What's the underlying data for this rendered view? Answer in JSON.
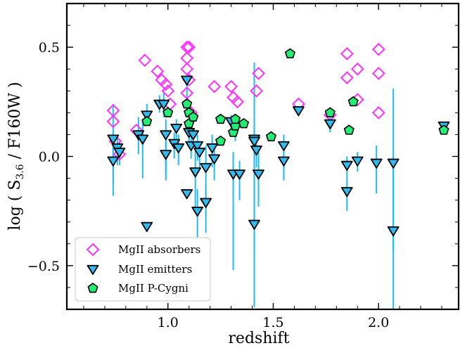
{
  "chart_data": {
    "type": "scatter",
    "title": "",
    "xlabel": "redshift",
    "ylabel_main": "log ( S",
    "ylabel_sub": "3.6",
    "ylabel_tail": " / F160W )",
    "xlim": [
      0.52,
      2.38
    ],
    "ylim": [
      -0.7,
      0.7
    ],
    "x_ticks": [
      1.0,
      1.5,
      2.0
    ],
    "x_tick_labels": [
      "1.0",
      "1.5",
      "2.0"
    ],
    "y_ticks": [
      -0.5,
      0.0,
      0.5
    ],
    "y_tick_labels": [
      "−0.5",
      "0.0",
      "0.5"
    ],
    "legend_position": "lower-left",
    "colors": {
      "absorber": "#ff33ff",
      "emitter_fill": "#33bbee",
      "pcygni_fill": "#22ee77",
      "errorbar": "#22bbee"
    },
    "series": [
      {
        "name": "MgII absorbers",
        "marker": "diamond",
        "points": [
          [
            0.74,
            0.21
          ],
          [
            0.74,
            0.16
          ],
          [
            0.75,
            0.07
          ],
          [
            0.77,
            0.01
          ],
          [
            0.85,
            0.12
          ],
          [
            0.89,
            0.44
          ],
          [
            0.95,
            0.39
          ],
          [
            0.97,
            0.35
          ],
          [
            0.99,
            0.33
          ],
          [
            1.0,
            0.3
          ],
          [
            1.01,
            0.24
          ],
          [
            1.09,
            0.5
          ],
          [
            1.09,
            0.45
          ],
          [
            1.09,
            0.4
          ],
          [
            1.1,
            0.5
          ],
          [
            1.1,
            0.35
          ],
          [
            1.09,
            0.29
          ],
          [
            1.11,
            0.2
          ],
          [
            1.22,
            0.32
          ],
          [
            1.3,
            0.32
          ],
          [
            1.31,
            0.27
          ],
          [
            1.33,
            0.25
          ],
          [
            1.42,
            0.3
          ],
          [
            1.43,
            0.38
          ],
          [
            1.62,
            0.24
          ],
          [
            1.77,
            0.19
          ],
          [
            1.85,
            0.47
          ],
          [
            1.85,
            0.36
          ],
          [
            1.9,
            0.4
          ],
          [
            1.9,
            0.26
          ],
          [
            2.0,
            0.49
          ],
          [
            2.0,
            0.38
          ],
          [
            2.0,
            0.2
          ]
        ]
      },
      {
        "name": "MgII emitters",
        "marker": "triangle-down",
        "points": [
          [
            0.74,
            0.08,
            0.16,
            0.26
          ],
          [
            0.74,
            -0.02,
            0.08,
            0.1
          ],
          [
            0.76,
            0.04,
            0.06,
            0.08
          ],
          [
            0.77,
            0.02,
            0.05,
            0.06
          ],
          [
            0.86,
            0.1,
            0.08,
            0.09
          ],
          [
            0.88,
            0.08,
            0.08,
            0.18
          ],
          [
            0.9,
            -0.32,
            0.0,
            0.0
          ],
          [
            0.9,
            0.19,
            0.05,
            0.04
          ],
          [
            0.96,
            0.24,
            0.04,
            0.04
          ],
          [
            0.98,
            0.24,
            0.06,
            0.06
          ],
          [
            0.99,
            0.1,
            0.07,
            0.18
          ],
          [
            0.99,
            0.01,
            0.08,
            0.12
          ],
          [
            1.03,
            0.06,
            0.05,
            0.07
          ],
          [
            1.04,
            0.13,
            0.04,
            0.06
          ],
          [
            1.05,
            0.04,
            0.06,
            0.08
          ],
          [
            1.09,
            0.35,
            0.02,
            0.1
          ],
          [
            1.09,
            -0.17,
            0.0,
            0.0
          ],
          [
            1.1,
            0.11,
            0.04,
            0.06
          ],
          [
            1.11,
            0.05,
            0.05,
            0.06
          ],
          [
            1.12,
            0.1,
            0.03,
            0.05
          ],
          [
            1.13,
            -0.07,
            0.1,
            0.16
          ],
          [
            1.14,
            -0.25,
            0.1,
            0.17
          ],
          [
            1.14,
            0.05,
            0.05,
            0.07
          ],
          [
            1.15,
            0.02,
            0.05,
            0.08
          ],
          [
            1.18,
            -0.05,
            0.1,
            0.14
          ],
          [
            1.18,
            -0.21,
            0.08,
            0.14
          ],
          [
            1.21,
            0.04,
            0.06,
            0.09
          ],
          [
            1.22,
            -0.01,
            0.06,
            0.1
          ],
          [
            1.3,
            0.16,
            0.03,
            0.06
          ],
          [
            1.31,
            -0.08,
            0.1,
            0.44
          ],
          [
            1.32,
            0.13,
            0.04,
            0.06
          ],
          [
            1.34,
            -0.08,
            0.06,
            0.12
          ],
          [
            1.41,
            0.08,
            0.06,
            0.08
          ],
          [
            1.41,
            -0.31,
            0.36,
            0.38
          ],
          [
            1.41,
            0.07,
            0.36,
            0.5
          ],
          [
            1.42,
            0.03,
            0.05,
            0.08
          ],
          [
            1.43,
            -0.08,
            0.1,
            0.15
          ],
          [
            1.55,
            0.05,
            0.05,
            0.12
          ],
          [
            1.55,
            -0.02,
            0.06,
            0.09
          ],
          [
            1.62,
            0.21,
            0.02,
            0.02
          ],
          [
            1.77,
            0.15,
            0.03,
            0.04
          ],
          [
            1.85,
            -0.04,
            0.04,
            0.06
          ],
          [
            1.85,
            -0.16,
            0.06,
            0.09
          ],
          [
            1.9,
            -0.02,
            0.04,
            0.05
          ],
          [
            1.99,
            -0.03,
            0.08,
            0.14
          ],
          [
            2.07,
            -0.03,
            0.34,
            0.4
          ],
          [
            2.07,
            -0.34,
            0.34,
            0.5
          ],
          [
            2.31,
            0.14,
            0.02,
            0.04
          ]
        ]
      },
      {
        "name": "MgII P-Cygni",
        "marker": "pentagon",
        "points": [
          [
            0.9,
            0.16
          ],
          [
            1.0,
            0.2
          ],
          [
            1.09,
            0.24
          ],
          [
            1.1,
            0.2
          ],
          [
            1.1,
            0.15
          ],
          [
            1.12,
            0.18
          ],
          [
            1.25,
            0.17
          ],
          [
            1.25,
            0.07
          ],
          [
            1.31,
            0.11
          ],
          [
            1.32,
            0.14
          ],
          [
            1.32,
            0.17
          ],
          [
            1.36,
            0.15
          ],
          [
            1.49,
            0.09
          ],
          [
            1.58,
            0.47
          ],
          [
            1.77,
            0.2
          ],
          [
            1.86,
            0.12
          ],
          [
            1.88,
            0.25
          ],
          [
            2.31,
            0.12
          ]
        ]
      }
    ]
  }
}
